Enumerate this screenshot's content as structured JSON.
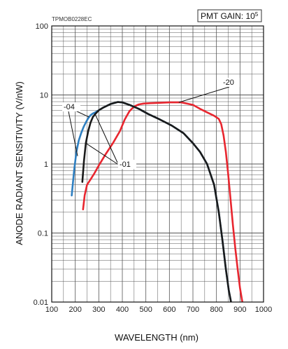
{
  "figure_code": "TPMOB0228EC",
  "gain_box": {
    "text": "PMT GAIN: 10",
    "exponent": "5"
  },
  "chart_data": {
    "type": "line",
    "xlabel": "WAVELENGTH (nm)",
    "ylabel": "ANODE RADIANT SENSITIVITY (V/nW)",
    "xlim": [
      100,
      1000
    ],
    "ylim": [
      0.01,
      100
    ],
    "yscale": "log",
    "grid": true,
    "x_ticks": [
      "100",
      "200",
      "300",
      "400",
      "500",
      "600",
      "700",
      "800",
      "900",
      "1000"
    ],
    "y_ticks": [
      "0.01",
      "0.1",
      "1",
      "10",
      "100"
    ],
    "series": [
      {
        "name": "-04",
        "color": "#2e7fc1",
        "x": [
          185,
          195,
          205,
          215,
          225,
          235,
          245,
          255,
          265,
          275,
          285,
          300,
          320,
          350,
          380,
          400,
          430,
          470,
          510,
          560,
          610,
          660,
          700,
          730,
          760,
          790,
          810,
          825,
          840,
          852,
          862,
          870
        ],
        "y": [
          0.35,
          0.8,
          1.5,
          2.2,
          2.8,
          3.4,
          4.0,
          4.6,
          5.1,
          5.4,
          5.6,
          6.0,
          6.6,
          7.4,
          7.9,
          7.8,
          7.2,
          6.3,
          5.3,
          4.4,
          3.6,
          2.8,
          2.0,
          1.5,
          1.0,
          0.5,
          0.2,
          0.08,
          0.03,
          0.015,
          0.01,
          0.008
        ]
      },
      {
        "name": "-01",
        "color": "#1a1a1a",
        "x": [
          230,
          237,
          245,
          255,
          265,
          275,
          285,
          300,
          320,
          350,
          380,
          400,
          430,
          470,
          510,
          560,
          610,
          660,
          700,
          730,
          760,
          790,
          810,
          825,
          840,
          852,
          862,
          870
        ],
        "y": [
          0.55,
          1.1,
          2.0,
          3.0,
          4.0,
          4.8,
          5.3,
          6.0,
          6.6,
          7.4,
          7.9,
          7.8,
          7.2,
          6.3,
          5.3,
          4.4,
          3.6,
          2.8,
          2.0,
          1.5,
          1.0,
          0.5,
          0.2,
          0.08,
          0.03,
          0.015,
          0.01,
          0.008
        ]
      },
      {
        "name": "-20",
        "color": "#e8262f",
        "x": [
          233,
          240,
          250,
          265,
          280,
          300,
          330,
          360,
          390,
          410,
          430,
          450,
          470,
          490,
          520,
          560,
          600,
          650,
          700,
          730,
          760,
          790,
          810,
          820,
          830,
          840,
          850,
          860,
          870,
          880,
          890,
          900,
          910,
          920
        ],
        "y": [
          0.22,
          0.35,
          0.5,
          0.6,
          0.72,
          0.95,
          1.4,
          2.0,
          3.0,
          4.4,
          5.8,
          6.8,
          7.3,
          7.5,
          7.6,
          7.7,
          7.8,
          7.8,
          7.2,
          6.3,
          5.6,
          5.0,
          4.5,
          3.8,
          2.6,
          1.5,
          0.7,
          0.3,
          0.13,
          0.06,
          0.03,
          0.016,
          0.01,
          0.007
        ]
      }
    ],
    "annotations": [
      {
        "text": "-04",
        "target_series": "-04"
      },
      {
        "text": "-01",
        "target_series": "-01"
      },
      {
        "text": "-20",
        "target_series": "-20"
      }
    ]
  }
}
